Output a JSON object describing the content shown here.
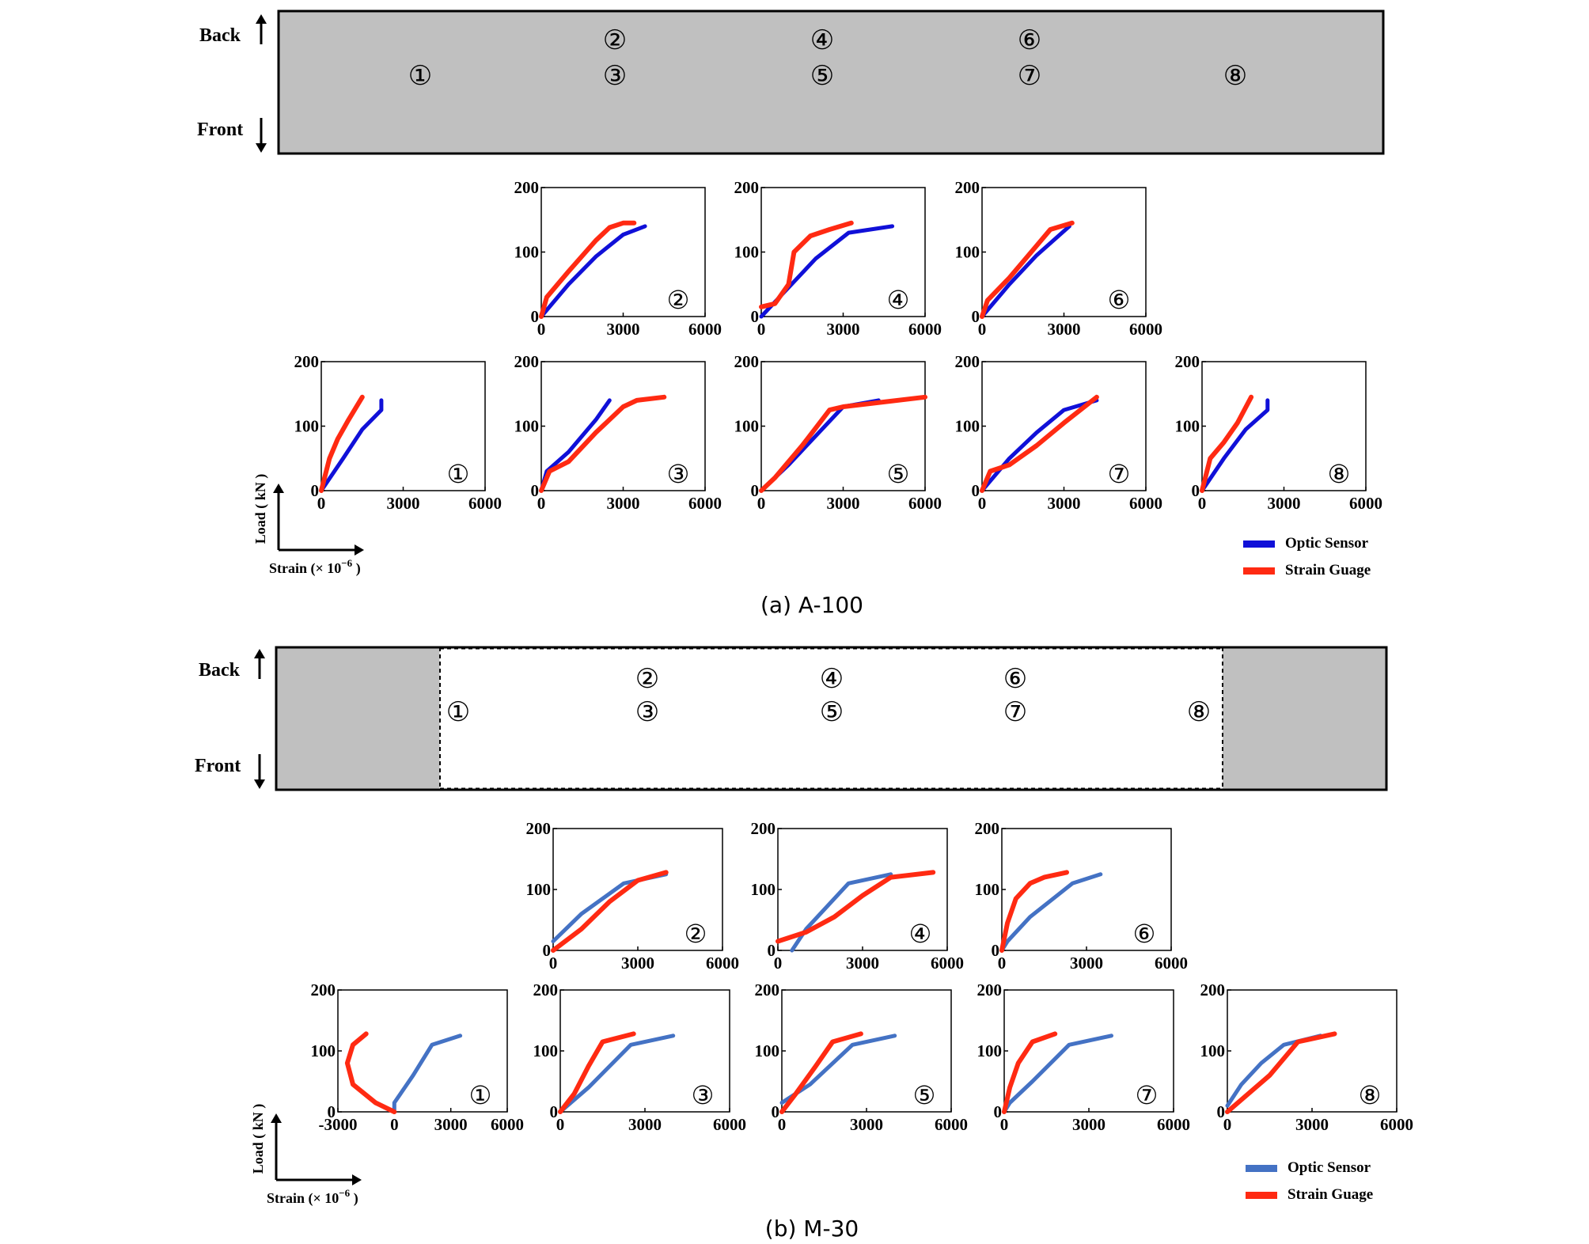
{
  "figures": [
    {
      "caption": "(a) A-100",
      "beam": {
        "back_label": "Back",
        "front_label": "Front",
        "positions": [
          "①",
          "②",
          "③",
          "④",
          "⑤",
          "⑥",
          "⑦",
          "⑧"
        ],
        "style": "solid"
      },
      "axis_hint": {
        "y_label": "Load ( kN )",
        "x_label": "Strain (× 10",
        "x_exp": "−6",
        "x_close": ")"
      },
      "legend": [
        "Optic Sensor",
        "Strain Guage"
      ]
    },
    {
      "caption": "(b) M-30",
      "beam": {
        "back_label": "Back",
        "front_label": "Front",
        "positions": [
          "①",
          "②",
          "③",
          "④",
          "⑤",
          "⑥",
          "⑦",
          "⑧"
        ],
        "style": "strengthened"
      },
      "axis_hint": {
        "y_label": "Load ( kN )",
        "x_label": "Strain (× 10",
        "x_exp": "−6",
        "x_close": ")"
      },
      "legend": [
        "Optic Sensor",
        "Strain Guage"
      ]
    }
  ],
  "colors": {
    "optic": "#1010d8",
    "optic_b": "#4472c4",
    "strain": "#ff2a12",
    "beam_fill": "#c0c0c0"
  },
  "chart_data": [
    {
      "type": "line",
      "figure": "(a) A-100",
      "label": "②",
      "xlim": [
        0,
        6000
      ],
      "ylim": [
        0,
        200
      ],
      "xticks": [
        0,
        3000,
        6000
      ],
      "yticks": [
        0,
        100,
        200
      ],
      "series": [
        {
          "name": "Optic Sensor",
          "x": [
            0,
            1000,
            2000,
            3000,
            3800
          ],
          "y": [
            0,
            50,
            93,
            127,
            140
          ]
        },
        {
          "name": "Strain Guage",
          "x": [
            0,
            200,
            1000,
            2000,
            2500,
            3000,
            3400
          ],
          "y": [
            0,
            30,
            70,
            118,
            138,
            145,
            145
          ]
        }
      ]
    },
    {
      "type": "line",
      "figure": "(a) A-100",
      "label": "④",
      "xlim": [
        0,
        6000
      ],
      "ylim": [
        0,
        200
      ],
      "xticks": [
        0,
        3000,
        6000
      ],
      "yticks": [
        0,
        100,
        200
      ],
      "series": [
        {
          "name": "Optic Sensor",
          "x": [
            0,
            1000,
            2000,
            3200,
            4800
          ],
          "y": [
            0,
            45,
            90,
            130,
            140
          ]
        },
        {
          "name": "Strain Guage",
          "x": [
            0,
            500,
            1000,
            1200,
            1800,
            2500,
            3300
          ],
          "y": [
            15,
            20,
            50,
            100,
            125,
            135,
            145
          ]
        }
      ]
    },
    {
      "type": "line",
      "figure": "(a) A-100",
      "label": "⑥",
      "xlim": [
        0,
        6000
      ],
      "ylim": [
        0,
        200
      ],
      "xticks": [
        0,
        3000,
        6000
      ],
      "yticks": [
        0,
        100,
        200
      ],
      "series": [
        {
          "name": "Optic Sensor",
          "x": [
            0,
            1000,
            2000,
            3200
          ],
          "y": [
            0,
            50,
            95,
            140
          ]
        },
        {
          "name": "Strain Guage",
          "x": [
            0,
            200,
            1000,
            2000,
            2500,
            3300
          ],
          "y": [
            0,
            25,
            60,
            110,
            135,
            145
          ]
        }
      ]
    },
    {
      "type": "line",
      "figure": "(a) A-100",
      "label": "①",
      "xlim": [
        0,
        6000
      ],
      "ylim": [
        0,
        200
      ],
      "xticks": [
        0,
        3000,
        6000
      ],
      "yticks": [
        0,
        100,
        200
      ],
      "series": [
        {
          "name": "Optic Sensor",
          "x": [
            0,
            800,
            1500,
            2200,
            2200
          ],
          "y": [
            0,
            50,
            95,
            125,
            140
          ]
        },
        {
          "name": "Strain Guage",
          "x": [
            0,
            300,
            600,
            1000,
            1500
          ],
          "y": [
            0,
            50,
            80,
            110,
            145
          ]
        }
      ]
    },
    {
      "type": "line",
      "figure": "(a) A-100",
      "label": "③",
      "xlim": [
        0,
        6000
      ],
      "ylim": [
        0,
        200
      ],
      "xticks": [
        0,
        3000,
        6000
      ],
      "yticks": [
        0,
        100,
        200
      ],
      "series": [
        {
          "name": "Optic Sensor",
          "x": [
            0,
            200,
            1000,
            2000,
            2500
          ],
          "y": [
            0,
            30,
            60,
            110,
            140
          ]
        },
        {
          "name": "Strain Guage",
          "x": [
            0,
            300,
            1000,
            2000,
            3000,
            3500,
            4500
          ],
          "y": [
            0,
            30,
            45,
            90,
            130,
            140,
            145
          ]
        }
      ]
    },
    {
      "type": "line",
      "figure": "(a) A-100",
      "label": "⑤",
      "xlim": [
        0,
        6000
      ],
      "ylim": [
        0,
        200
      ],
      "xticks": [
        0,
        3000,
        6000
      ],
      "yticks": [
        0,
        100,
        200
      ],
      "series": [
        {
          "name": "Optic Sensor",
          "x": [
            0,
            1000,
            2000,
            3000,
            4300
          ],
          "y": [
            0,
            40,
            85,
            130,
            140
          ]
        },
        {
          "name": "Strain Guage",
          "x": [
            0,
            500,
            1500,
            2500,
            3000,
            6000
          ],
          "y": [
            0,
            20,
            70,
            125,
            130,
            145
          ]
        }
      ]
    },
    {
      "type": "line",
      "figure": "(a) A-100",
      "label": "⑦",
      "xlim": [
        0,
        6000
      ],
      "ylim": [
        0,
        200
      ],
      "xticks": [
        0,
        3000,
        6000
      ],
      "yticks": [
        0,
        100,
        200
      ],
      "series": [
        {
          "name": "Optic Sensor",
          "x": [
            0,
            1000,
            2000,
            3000,
            4200
          ],
          "y": [
            0,
            50,
            90,
            125,
            140
          ]
        },
        {
          "name": "Strain Guage",
          "x": [
            0,
            300,
            1000,
            2000,
            3000,
            4200
          ],
          "y": [
            0,
            30,
            40,
            70,
            105,
            145
          ]
        }
      ]
    },
    {
      "type": "line",
      "figure": "(a) A-100",
      "label": "⑧",
      "xlim": [
        0,
        6000
      ],
      "ylim": [
        0,
        200
      ],
      "xticks": [
        0,
        3000,
        6000
      ],
      "yticks": [
        0,
        100,
        200
      ],
      "series": [
        {
          "name": "Optic Sensor",
          "x": [
            0,
            800,
            1600,
            2400,
            2400
          ],
          "y": [
            0,
            50,
            95,
            125,
            140
          ]
        },
        {
          "name": "Strain Guage",
          "x": [
            0,
            300,
            800,
            1300,
            1800
          ],
          "y": [
            0,
            50,
            75,
            105,
            145
          ]
        }
      ]
    },
    {
      "type": "line",
      "figure": "(b) M-30",
      "label": "②",
      "xlim": [
        0,
        6000
      ],
      "ylim": [
        0,
        200
      ],
      "xticks": [
        0,
        3000,
        6000
      ],
      "yticks": [
        0,
        100,
        200
      ],
      "series": [
        {
          "name": "Optic Sensor",
          "x": [
            0,
            1000,
            2500,
            4000
          ],
          "y": [
            15,
            60,
            110,
            125
          ]
        },
        {
          "name": "Strain Guage",
          "x": [
            0,
            1000,
            2000,
            3000,
            4000
          ],
          "y": [
            0,
            35,
            80,
            115,
            128
          ]
        }
      ]
    },
    {
      "type": "line",
      "figure": "(b) M-30",
      "label": "④",
      "xlim": [
        0,
        6000
      ],
      "ylim": [
        0,
        200
      ],
      "xticks": [
        0,
        3000,
        6000
      ],
      "yticks": [
        0,
        100,
        200
      ],
      "series": [
        {
          "name": "Optic Sensor",
          "x": [
            500,
            1000,
            2500,
            4000
          ],
          "y": [
            0,
            35,
            110,
            125
          ]
        },
        {
          "name": "Strain Guage",
          "x": [
            0,
            1000,
            2000,
            3000,
            4000,
            5500
          ],
          "y": [
            15,
            30,
            55,
            90,
            120,
            128
          ]
        }
      ]
    },
    {
      "type": "line",
      "figure": "(b) M-30",
      "label": "⑥",
      "xlim": [
        0,
        6000
      ],
      "ylim": [
        0,
        200
      ],
      "xticks": [
        0,
        3000,
        6000
      ],
      "yticks": [
        0,
        100,
        200
      ],
      "series": [
        {
          "name": "Optic Sensor",
          "x": [
            0,
            200,
            1000,
            2500,
            3500
          ],
          "y": [
            0,
            15,
            55,
            110,
            125
          ]
        },
        {
          "name": "Strain Guage",
          "x": [
            0,
            200,
            500,
            1000,
            1500,
            2300
          ],
          "y": [
            0,
            45,
            85,
            110,
            120,
            128
          ]
        }
      ]
    },
    {
      "type": "line",
      "figure": "(b) M-30",
      "label": "①",
      "xlim": [
        -3000,
        6000
      ],
      "ylim": [
        0,
        200
      ],
      "xticks": [
        -3000,
        0,
        3000,
        6000
      ],
      "yticks": [
        0,
        100,
        200
      ],
      "series": [
        {
          "name": "Optic Sensor",
          "x": [
            0,
            0,
            1000,
            2000,
            3500
          ],
          "y": [
            0,
            15,
            60,
            110,
            125
          ]
        },
        {
          "name": "Strain Guage",
          "x": [
            0,
            -1000,
            -2200,
            -2500,
            -2200,
            -1500
          ],
          "y": [
            0,
            15,
            45,
            80,
            110,
            128
          ]
        }
      ]
    },
    {
      "type": "line",
      "figure": "(b) M-30",
      "label": "③",
      "xlim": [
        0,
        6000
      ],
      "ylim": [
        0,
        200
      ],
      "xticks": [
        0,
        3000,
        6000
      ],
      "yticks": [
        0,
        100,
        200
      ],
      "series": [
        {
          "name": "Optic Sensor",
          "x": [
            0,
            1000,
            2500,
            4000
          ],
          "y": [
            0,
            40,
            110,
            125
          ]
        },
        {
          "name": "Strain Guage",
          "x": [
            0,
            500,
            1000,
            1500,
            2600
          ],
          "y": [
            0,
            30,
            75,
            115,
            128
          ]
        }
      ]
    },
    {
      "type": "line",
      "figure": "(b) M-30",
      "label": "⑤",
      "xlim": [
        0,
        6000
      ],
      "ylim": [
        0,
        200
      ],
      "xticks": [
        0,
        3000,
        6000
      ],
      "yticks": [
        0,
        100,
        200
      ],
      "series": [
        {
          "name": "Optic Sensor",
          "x": [
            0,
            1000,
            2500,
            4000
          ],
          "y": [
            15,
            45,
            110,
            125
          ]
        },
        {
          "name": "Strain Guage",
          "x": [
            0,
            500,
            1200,
            1800,
            2800
          ],
          "y": [
            0,
            30,
            75,
            115,
            128
          ]
        }
      ]
    },
    {
      "type": "line",
      "figure": "(b) M-30",
      "label": "⑦",
      "xlim": [
        0,
        6000
      ],
      "ylim": [
        0,
        200
      ],
      "xticks": [
        0,
        3000,
        6000
      ],
      "yticks": [
        0,
        100,
        200
      ],
      "series": [
        {
          "name": "Optic Sensor",
          "x": [
            0,
            200,
            1000,
            2300,
            3800
          ],
          "y": [
            0,
            15,
            50,
            110,
            125
          ]
        },
        {
          "name": "Strain Guage",
          "x": [
            0,
            200,
            500,
            1000,
            1800
          ],
          "y": [
            0,
            40,
            80,
            115,
            128
          ]
        }
      ]
    },
    {
      "type": "line",
      "figure": "(b) M-30",
      "label": "⑧",
      "xlim": [
        0,
        6000
      ],
      "ylim": [
        0,
        200
      ],
      "xticks": [
        0,
        3000,
        6000
      ],
      "yticks": [
        0,
        100,
        200
      ],
      "series": [
        {
          "name": "Optic Sensor",
          "x": [
            0,
            500,
            1200,
            2000,
            3300
          ],
          "y": [
            10,
            45,
            80,
            110,
            125
          ]
        },
        {
          "name": "Strain Guage",
          "x": [
            0,
            500,
            1500,
            2500,
            3800
          ],
          "y": [
            0,
            20,
            60,
            115,
            128
          ]
        }
      ]
    }
  ]
}
